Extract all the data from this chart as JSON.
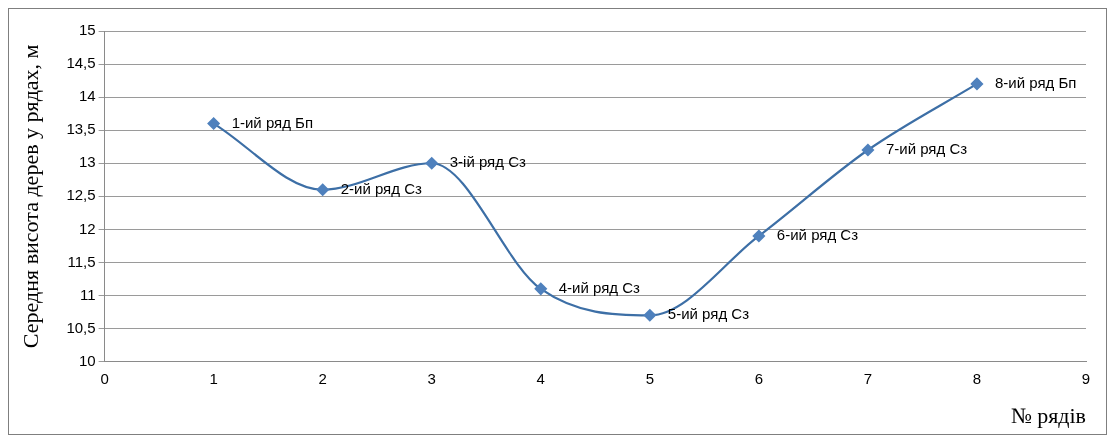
{
  "chart_data": {
    "type": "line",
    "xlabel": "№ рядів",
    "ylabel": "Середня висота дерев у рядах, м",
    "x": [
      1,
      2,
      3,
      4,
      5,
      6,
      7,
      8
    ],
    "series": [
      {
        "color": "#3d6fa6",
        "values": [
          13.6,
          12.6,
          13.0,
          11.1,
          10.7,
          11.9,
          13.2,
          14.2
        ]
      }
    ],
    "xlim": [
      0,
      9
    ],
    "xticks": [
      0,
      1,
      2,
      3,
      4,
      5,
      6,
      7,
      8,
      9
    ],
    "ylim": [
      10,
      15
    ],
    "yticks": [
      10,
      {
        "value": 10.5,
        "label": "10,5"
      },
      11,
      {
        "value": 11.5,
        "label": "11,5"
      },
      12,
      {
        "value": 12.5,
        "label": "12,5"
      },
      13,
      {
        "value": 13.5,
        "label": "13,5"
      },
      14,
      {
        "value": 14.5,
        "label": "14,5"
      },
      15
    ],
    "grid": "y",
    "legend": false,
    "marker": "diamond",
    "line_style": "solid",
    "annotations": [
      {
        "text": "1-ий ряд Бп",
        "x": 1,
        "y": 13.6
      },
      {
        "text": "2-ий ряд Сз",
        "x": 2,
        "y": 12.6
      },
      {
        "text": "3-ій ряд Сз",
        "x": 3,
        "y": 13.0
      },
      {
        "text": "4-ий ряд Сз",
        "x": 4,
        "y": 11.1
      },
      {
        "text": "5-ий ряд Сз",
        "x": 5,
        "y": 10.7
      },
      {
        "text": "6-ий ряд Сз",
        "x": 6,
        "y": 11.9
      },
      {
        "text": "7-ий ряд Сз",
        "x": 7,
        "y": 13.2
      },
      {
        "text": "8-ий ряд Бп",
        "x": 8,
        "y": 14.2
      }
    ]
  }
}
